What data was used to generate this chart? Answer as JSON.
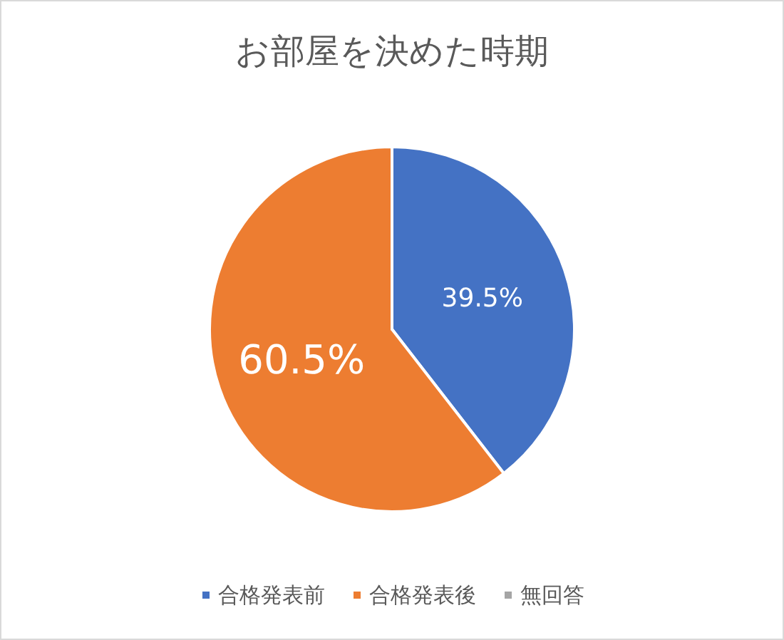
{
  "chart_data": {
    "type": "pie",
    "title": "お部屋を決めた時期",
    "categories": [
      "合格発表前",
      "合格発表後",
      "無回答"
    ],
    "values": [
      39.5,
      60.5,
      0
    ],
    "colors": [
      "#4472c4",
      "#ed7d31",
      "#a5a5a5"
    ],
    "value_labels": [
      "39.5%",
      "60.5%",
      null
    ],
    "legend": "bottom"
  }
}
